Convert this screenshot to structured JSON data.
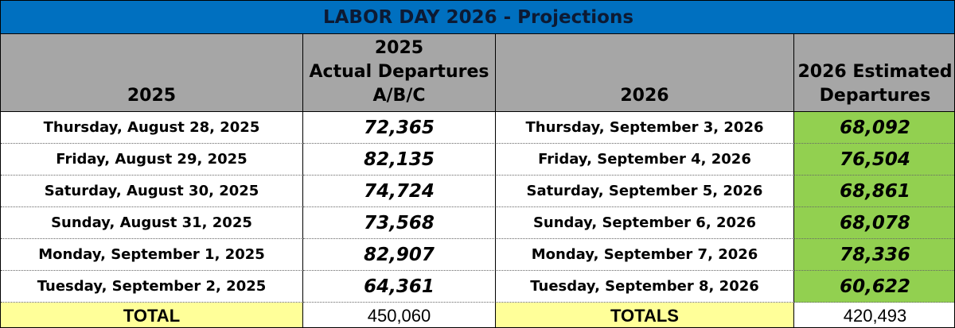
{
  "title": "LABOR DAY 2026 - Projections",
  "headers": [
    [
      "2025"
    ],
    [
      "2025",
      "Actual Departures",
      "A/B/C"
    ],
    [
      "2026"
    ],
    [
      "2026 Estimated",
      "Departures"
    ]
  ],
  "rows": [
    [
      "Thursday, August 28, 2025",
      "72,365",
      "Thursday, September 3, 2026",
      "68,092"
    ],
    [
      "Friday, August 29, 2025",
      "82,135",
      "Friday, September 4, 2026",
      "76,504"
    ],
    [
      "Saturday, August 30, 2025",
      "74,724",
      "Saturday, September 5, 2026",
      "68,861"
    ],
    [
      "Sunday, August 31, 2025",
      "73,568",
      "Sunday, September 6, 2026",
      "68,078"
    ],
    [
      "Monday, September 1, 2025",
      "82,907",
      "Monday, September 7, 2026",
      "78,336"
    ],
    [
      "Tuesday, September 2, 2025",
      "64,361",
      "Tuesday, September 8, 2026",
      "60,622"
    ]
  ],
  "totals": [
    "TOTAL",
    "450,060",
    "TOTALS",
    "420,493"
  ]
}
